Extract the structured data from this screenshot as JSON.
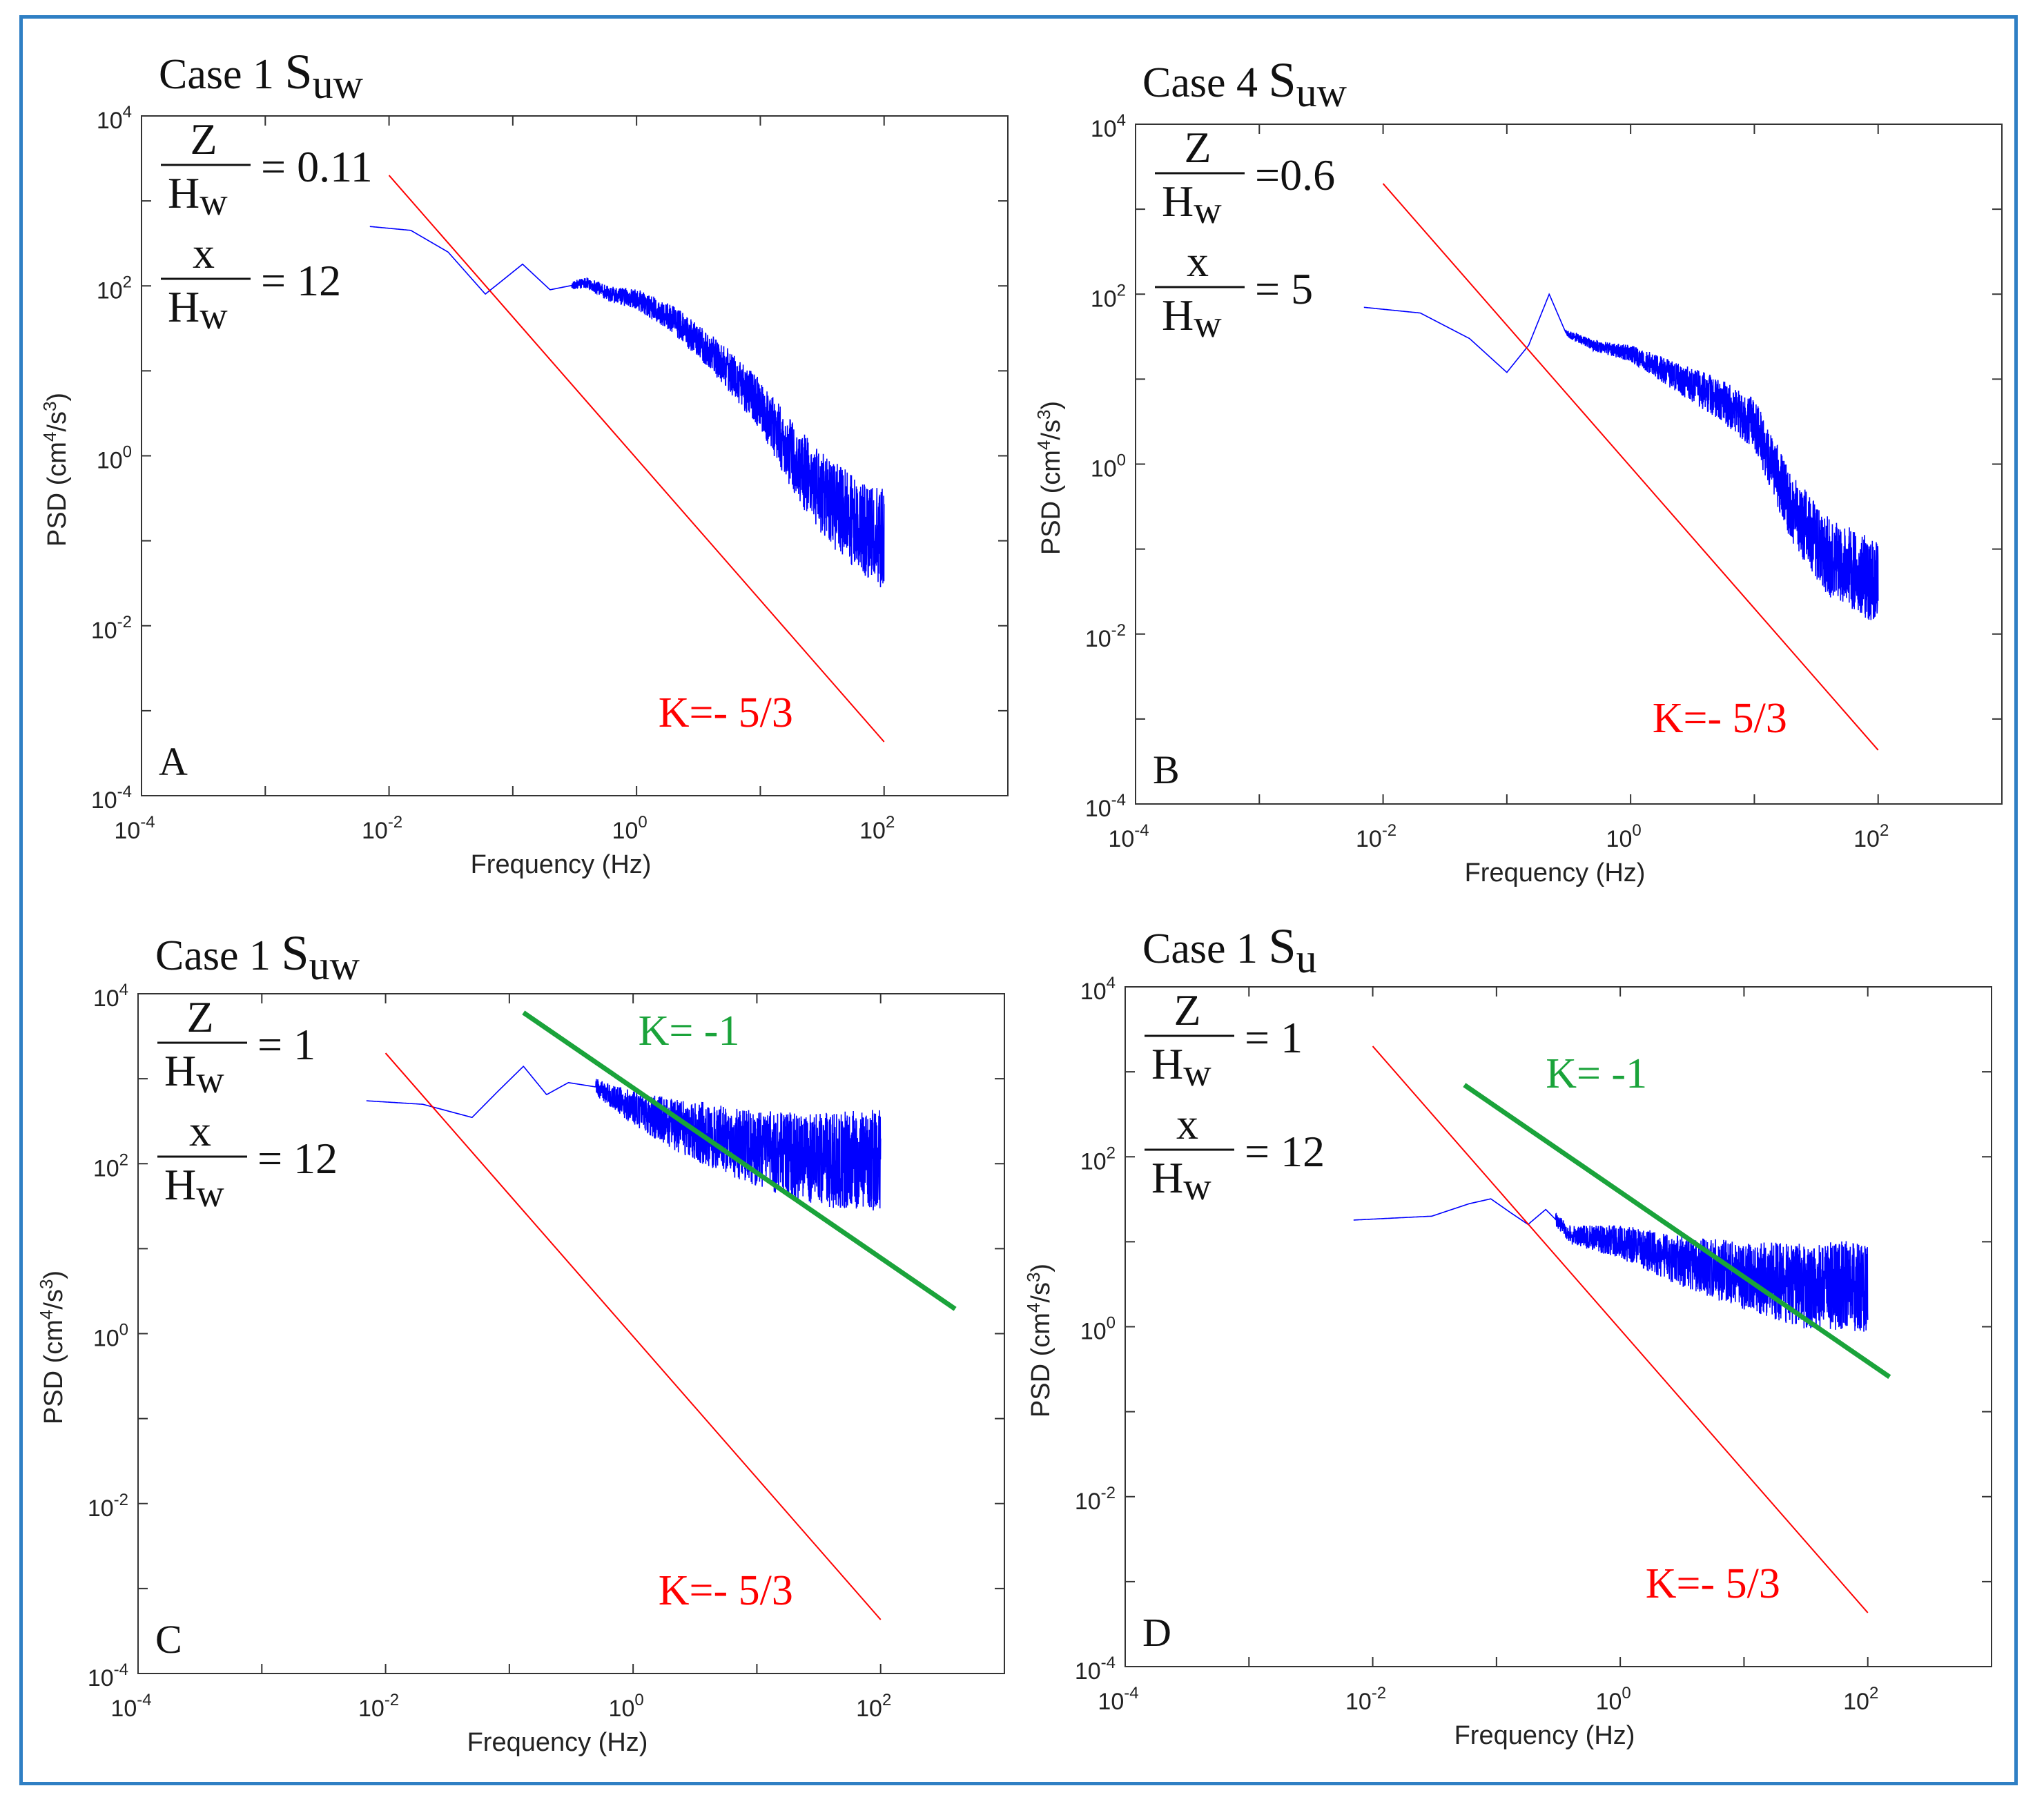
{
  "figure": {
    "border_color": "#2f7fc4",
    "blue": "#0000ff",
    "red": "#ff0000",
    "green": "#1aa33a"
  },
  "chart_data": [
    {
      "id": "A",
      "type": "line",
      "panel_label": "A",
      "title": "Case 1",
      "title_symbol": "S",
      "title_subscript": "uw",
      "z_ratio_num": "Z",
      "z_ratio_den": "H",
      "z_ratio_den_sub": "w",
      "z_ratio_value": "= 0.11",
      "x_ratio_num": "x",
      "x_ratio_den": "H",
      "x_ratio_den_sub": "w",
      "x_ratio_value": "= 12",
      "xlabel": "Frequency (Hz)",
      "ylabel": "PSD (cm",
      "ylabel_sup1": "4",
      "ylabel_mid": "/s",
      "ylabel_sup2": "3",
      "ylabel_end": ")",
      "xscale": "log",
      "yscale": "log",
      "xlim": [
        0.0001,
        1000
      ],
      "ylim": [
        0.0001,
        10000
      ],
      "xticks": [
        {
          "base": "10",
          "exp": "-4",
          "v": -4
        },
        {
          "base": "10",
          "exp": "-2",
          "v": -2
        },
        {
          "base": "10",
          "exp": "0",
          "v": 0
        },
        {
          "base": "10",
          "exp": "2",
          "v": 2
        }
      ],
      "yticks": [
        {
          "base": "10",
          "exp": "-4",
          "v": -4
        },
        {
          "base": "10",
          "exp": "-2",
          "v": -2
        },
        {
          "base": "10",
          "exp": "0",
          "v": 0
        },
        {
          "base": "10",
          "exp": "2",
          "v": 2
        },
        {
          "base": "10",
          "exp": "4",
          "v": 4
        }
      ],
      "spectrum": {
        "name": "S_uw spectrum",
        "f_start": 0.007,
        "f_end": 100,
        "points": [
          [
            0.007,
            500
          ],
          [
            0.015,
            450
          ],
          [
            0.03,
            250
          ],
          [
            0.06,
            80
          ],
          [
            0.12,
            180
          ],
          [
            0.2,
            90
          ],
          [
            0.4,
            110
          ],
          [
            0.6,
            80
          ],
          [
            1,
            70
          ],
          [
            2,
            40
          ],
          [
            5,
            12
          ],
          [
            10,
            4
          ],
          [
            20,
            0.8
          ],
          [
            40,
            0.25
          ],
          [
            100,
            0.1
          ]
        ],
        "noise_profile": [
          [
            0.3,
            0.05
          ],
          [
            1,
            0.12
          ],
          [
            3,
            0.2
          ],
          [
            10,
            0.3
          ],
          [
            30,
            0.5
          ],
          [
            100,
            0.6
          ]
        ]
      },
      "slope_lines": [
        {
          "name": "K=- 5/3",
          "color": "red",
          "slope": -1.6667,
          "f_start": 0.01,
          "f_end": 100,
          "y_start": 2000
        }
      ],
      "annotations": [
        {
          "text": "K=- 5/3",
          "color": "red",
          "at_f": 1.5,
          "at_y": 0.00065
        }
      ]
    },
    {
      "id": "B",
      "type": "line",
      "panel_label": "B",
      "title": "Case 4",
      "title_symbol": "S",
      "title_subscript": "uw",
      "z_ratio_num": "Z",
      "z_ratio_den": "H",
      "z_ratio_den_sub": "w",
      "z_ratio_value": "=0.6",
      "x_ratio_num": "x",
      "x_ratio_den": "H",
      "x_ratio_den_sub": "w",
      "x_ratio_value": "= 5",
      "xlabel": "Frequency (Hz)",
      "ylabel": "PSD (cm",
      "ylabel_sup1": "4",
      "ylabel_mid": "/s",
      "ylabel_sup2": "3",
      "ylabel_end": ")",
      "xscale": "log",
      "yscale": "log",
      "xlim": [
        0.0001,
        1000
      ],
      "ylim": [
        0.0001,
        10000
      ],
      "xticks": [
        {
          "base": "10",
          "exp": "-4",
          "v": -4
        },
        {
          "base": "10",
          "exp": "-2",
          "v": -2
        },
        {
          "base": "10",
          "exp": "0",
          "v": 0
        },
        {
          "base": "10",
          "exp": "2",
          "v": 2
        }
      ],
      "yticks": [
        {
          "base": "10",
          "exp": "-4",
          "v": -4
        },
        {
          "base": "10",
          "exp": "-2",
          "v": -2
        },
        {
          "base": "10",
          "exp": "0",
          "v": 0
        },
        {
          "base": "10",
          "exp": "2",
          "v": 2
        },
        {
          "base": "10",
          "exp": "4",
          "v": 4
        }
      ],
      "spectrum": {
        "name": "S_uw spectrum",
        "f_start": 0.007,
        "f_end": 100,
        "points": [
          [
            0.007,
            70
          ],
          [
            0.02,
            60
          ],
          [
            0.05,
            30
          ],
          [
            0.1,
            12
          ],
          [
            0.15,
            25
          ],
          [
            0.22,
            100
          ],
          [
            0.3,
            35
          ],
          [
            0.5,
            25
          ],
          [
            1,
            20
          ],
          [
            2,
            12
          ],
          [
            5,
            6
          ],
          [
            10,
            3
          ],
          [
            20,
            0.3
          ],
          [
            40,
            0.08
          ],
          [
            100,
            0.04
          ]
        ],
        "noise_profile": [
          [
            0.3,
            0.04
          ],
          [
            1,
            0.1
          ],
          [
            3,
            0.2
          ],
          [
            10,
            0.3
          ],
          [
            30,
            0.45
          ],
          [
            100,
            0.5
          ]
        ]
      },
      "slope_lines": [
        {
          "name": "K=- 5/3",
          "color": "red",
          "slope": -1.6667,
          "f_start": 0.01,
          "f_end": 100,
          "y_start": 2000
        }
      ],
      "annotations": [
        {
          "text": "K=- 5/3",
          "color": "red",
          "at_f": 1.5,
          "at_y": 0.0007
        }
      ]
    },
    {
      "id": "C",
      "type": "line",
      "panel_label": "C",
      "title": "Case 1",
      "title_symbol": "S",
      "title_subscript": "uw",
      "z_ratio_num": "Z",
      "z_ratio_den": "H",
      "z_ratio_den_sub": "w",
      "z_ratio_value": "= 1",
      "x_ratio_num": "x",
      "x_ratio_den": "H",
      "x_ratio_den_sub": "w",
      "x_ratio_value": "= 12",
      "xlabel": "Frequency (Hz)",
      "ylabel": "PSD (cm",
      "ylabel_sup1": "4",
      "ylabel_mid": "/s",
      "ylabel_sup2": "3",
      "ylabel_end": ")",
      "xscale": "log",
      "yscale": "log",
      "xlim": [
        0.0001,
        1000
      ],
      "ylim": [
        0.0001,
        10000
      ],
      "xticks": [
        {
          "base": "10",
          "exp": "-4",
          "v": -4
        },
        {
          "base": "10",
          "exp": "-2",
          "v": -2
        },
        {
          "base": "10",
          "exp": "0",
          "v": 0
        },
        {
          "base": "10",
          "exp": "2",
          "v": 2
        }
      ],
      "yticks": [
        {
          "base": "10",
          "exp": "-4",
          "v": -4
        },
        {
          "base": "10",
          "exp": "-2",
          "v": -2
        },
        {
          "base": "10",
          "exp": "0",
          "v": 0
        },
        {
          "base": "10",
          "exp": "2",
          "v": 2
        },
        {
          "base": "10",
          "exp": "4",
          "v": 4
        }
      ],
      "spectrum": {
        "name": "S_uw spectrum",
        "f_start": 0.007,
        "f_end": 100,
        "points": [
          [
            0.007,
            550
          ],
          [
            0.02,
            500
          ],
          [
            0.05,
            350
          ],
          [
            0.08,
            700
          ],
          [
            0.13,
            1400
          ],
          [
            0.2,
            650
          ],
          [
            0.3,
            900
          ],
          [
            0.5,
            800
          ],
          [
            1,
            450
          ],
          [
            2,
            300
          ],
          [
            5,
            200
          ],
          [
            10,
            150
          ],
          [
            30,
            110
          ],
          [
            100,
            110
          ]
        ],
        "noise_profile": [
          [
            0.5,
            0.1
          ],
          [
            1,
            0.2
          ],
          [
            3,
            0.35
          ],
          [
            10,
            0.45
          ],
          [
            30,
            0.55
          ],
          [
            100,
            0.6
          ]
        ]
      },
      "slope_lines": [
        {
          "name": "K=- 5/3",
          "color": "red",
          "slope": -1.6667,
          "f_start": 0.01,
          "f_end": 100,
          "y_start": 2000
        },
        {
          "name": "K= -1",
          "color": "green",
          "slope": -1.0,
          "f_start": 0.13,
          "f_end": 400,
          "y_start": 6000
        }
      ],
      "annotations": [
        {
          "text": "K=- 5/3",
          "color": "red",
          "at_f": 1.6,
          "at_y": 0.00065
        },
        {
          "text": "K= -1",
          "color": "green",
          "at_f": 1.1,
          "at_y": 2500
        }
      ]
    },
    {
      "id": "D",
      "type": "line",
      "panel_label": "D",
      "title": "Case 1",
      "title_symbol": "S",
      "title_subscript": "u",
      "z_ratio_num": "Z",
      "z_ratio_den": "H",
      "z_ratio_den_sub": "w",
      "z_ratio_value": "= 1",
      "x_ratio_num": "x",
      "x_ratio_den": "H",
      "x_ratio_den_sub": "w",
      "x_ratio_value": "= 12",
      "xlabel": "Frequency (Hz)",
      "ylabel": "PSD (cm",
      "ylabel_sup1": "4",
      "ylabel_mid": "/s",
      "ylabel_sup2": "3",
      "ylabel_end": ")",
      "xscale": "log",
      "yscale": "log",
      "xlim": [
        0.0001,
        1000
      ],
      "ylim": [
        0.0001,
        10000
      ],
      "xticks": [
        {
          "base": "10",
          "exp": "-4",
          "v": -4
        },
        {
          "base": "10",
          "exp": "-2",
          "v": -2
        },
        {
          "base": "10",
          "exp": "0",
          "v": 0
        },
        {
          "base": "10",
          "exp": "2",
          "v": 2
        }
      ],
      "yticks": [
        {
          "base": "10",
          "exp": "-4",
          "v": -4
        },
        {
          "base": "10",
          "exp": "-2",
          "v": -2
        },
        {
          "base": "10",
          "exp": "0",
          "v": 0
        },
        {
          "base": "10",
          "exp": "2",
          "v": 2
        },
        {
          "base": "10",
          "exp": "4",
          "v": 4
        }
      ],
      "spectrum": {
        "name": "S_u spectrum",
        "f_start": 0.007,
        "f_end": 100,
        "points": [
          [
            0.007,
            18
          ],
          [
            0.03,
            20
          ],
          [
            0.06,
            28
          ],
          [
            0.09,
            32
          ],
          [
            0.13,
            22
          ],
          [
            0.18,
            16
          ],
          [
            0.25,
            24
          ],
          [
            0.4,
            12
          ],
          [
            1,
            10
          ],
          [
            3,
            6
          ],
          [
            10,
            4
          ],
          [
            30,
            3
          ],
          [
            100,
            3
          ]
        ],
        "noise_profile": [
          [
            0.3,
            0.08
          ],
          [
            1,
            0.2
          ],
          [
            3,
            0.3
          ],
          [
            10,
            0.4
          ],
          [
            30,
            0.5
          ],
          [
            100,
            0.55
          ]
        ]
      },
      "slope_lines": [
        {
          "name": "K=- 5/3",
          "color": "red",
          "slope": -1.6667,
          "f_start": 0.01,
          "f_end": 100,
          "y_start": 2000
        },
        {
          "name": "K= -1",
          "color": "green",
          "slope": -1.0,
          "f_start": 0.055,
          "f_end": 150,
          "y_start": 700
        }
      ],
      "annotations": [
        {
          "text": "K=- 5/3",
          "color": "red",
          "at_f": 1.6,
          "at_y": 0.00065
        },
        {
          "text": "K= -1",
          "color": "green",
          "at_f": 0.25,
          "at_y": 650
        }
      ]
    }
  ]
}
